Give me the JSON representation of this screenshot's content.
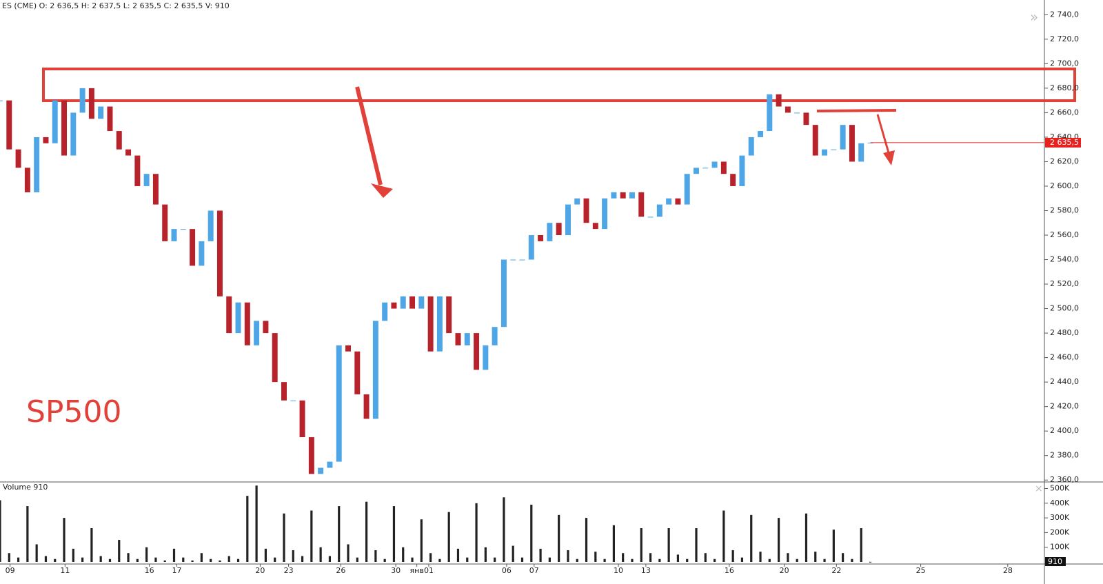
{
  "chart_data": [
    {
      "type": "candle",
      "title": "ES (CME) O: 2 636,5  H: 2 637,5  L: 2 635,5  C: 2 635,5  V: 910",
      "annotation": "SP500",
      "last_label": "2 635,5",
      "xlim": [
        0,
        114
      ],
      "xticks": [
        {
          "value": 1.1,
          "label": "09"
        },
        {
          "value": 7.1,
          "label": "11"
        },
        {
          "value": 16.3,
          "label": "16"
        },
        {
          "value": 19.3,
          "label": "17"
        },
        {
          "value": 28.4,
          "label": "20"
        },
        {
          "value": 31.5,
          "label": "23"
        },
        {
          "value": 37.2,
          "label": "26"
        },
        {
          "value": 43.2,
          "label": "30"
        },
        {
          "value": 45.5,
          "label": "янв"
        },
        {
          "value": 46.8,
          "label": "01"
        },
        {
          "value": 55.3,
          "label": "06"
        },
        {
          "value": 58.3,
          "label": "07"
        },
        {
          "value": 67.5,
          "label": "10"
        },
        {
          "value": 70.5,
          "label": "13"
        },
        {
          "value": 79.6,
          "label": "16"
        },
        {
          "value": 85.6,
          "label": "20"
        },
        {
          "value": 91.3,
          "label": "22"
        },
        {
          "value": 100.5,
          "label": "25"
        },
        {
          "value": 110,
          "label": "28"
        }
      ],
      "ylim": [
        2359,
        2752
      ],
      "yticks": [
        {
          "value": 2360,
          "label": "2 360,0"
        },
        {
          "value": 2380,
          "label": "2 380,0"
        },
        {
          "value": 2400,
          "label": "2 400,0"
        },
        {
          "value": 2420,
          "label": "2 420,0"
        },
        {
          "value": 2440,
          "label": "2 440,0"
        },
        {
          "value": 2460,
          "label": "2 460,0"
        },
        {
          "value": 2480,
          "label": "2 480,0"
        },
        {
          "value": 2500,
          "label": "2 500,0"
        },
        {
          "value": 2520,
          "label": "2 520,0"
        },
        {
          "value": 2540,
          "label": "2 540,0"
        },
        {
          "value": 2560,
          "label": "2 560,0"
        },
        {
          "value": 2580,
          "label": "2 580,0"
        },
        {
          "value": 2600,
          "label": "2 600,0"
        },
        {
          "value": 2620,
          "label": "2 620,0"
        },
        {
          "value": 2640,
          "label": "2 640,0"
        },
        {
          "value": 2660,
          "label": "2 660,0"
        },
        {
          "value": 2680,
          "label": "2 680,0"
        },
        {
          "value": 2700,
          "label": "2 700,0"
        },
        {
          "value": 2720,
          "label": "2 720,0"
        },
        {
          "value": 2740,
          "label": "2 740,0"
        }
      ],
      "up_color": "#4ea6e6",
      "down_color": "#b8222a",
      "last_color": "#e8231f",
      "series": [
        {
          "values": [
            2670,
            2630,
            2615,
            2595,
            2640,
            2635,
            2670,
            2625,
            2660,
            2680,
            2655,
            2665,
            2645,
            2630,
            2625,
            2600,
            2610,
            2585,
            2555,
            2565,
            2565,
            2535,
            2555,
            2580,
            2510,
            2480,
            2505,
            2470,
            2490,
            2480,
            2440,
            2425,
            2425,
            2395,
            2365,
            2370,
            2375,
            2470,
            2465,
            2430,
            2410,
            2490,
            2505,
            2500,
            2510,
            2500,
            2510,
            2465,
            2510,
            2480,
            2470,
            2480,
            2450,
            2470,
            2485,
            2540,
            2540,
            2540,
            2560,
            2555,
            2570,
            2560,
            2585,
            2590,
            2570,
            2565,
            2590,
            2595,
            2590,
            2595,
            2575,
            2575,
            2585,
            2590,
            2585,
            2610,
            2615,
            2615,
            2620,
            2610,
            2600,
            2625,
            2640,
            2645,
            2675,
            2665,
            2660,
            2660,
            2650,
            2625,
            2630,
            2630,
            2650,
            2620,
            2635,
            2635.5
          ]
        }
      ]
    },
    {
      "type": "bar",
      "title": "Volume 910",
      "xlim": [
        0,
        114
      ],
      "ylim": [
        0,
        540000
      ],
      "yticks": [
        {
          "value": 100000,
          "label": "100K"
        },
        {
          "value": 200000,
          "label": "200K"
        },
        {
          "value": 300000,
          "label": "300K"
        },
        {
          "value": 400000,
          "label": "400K"
        },
        {
          "value": 500000,
          "label": "500K"
        }
      ],
      "color": "#222222",
      "series": [
        {
          "values": [
            420000,
            60000,
            30000,
            380000,
            120000,
            40000,
            20000,
            300000,
            90000,
            30000,
            230000,
            40000,
            20000,
            150000,
            60000,
            20000,
            100000,
            30000,
            10000,
            90000,
            30000,
            10000,
            60000,
            20000,
            10000,
            40000,
            20000,
            450000,
            520000,
            90000,
            30000,
            330000,
            80000,
            40000,
            350000,
            100000,
            40000,
            380000,
            120000,
            30000,
            410000,
            80000,
            20000,
            380000,
            100000,
            30000,
            290000,
            60000,
            20000,
            340000,
            90000,
            30000,
            400000,
            100000,
            30000,
            440000,
            110000,
            30000,
            390000,
            90000,
            30000,
            320000,
            80000,
            20000,
            300000,
            70000,
            20000,
            250000,
            60000,
            20000,
            230000,
            60000,
            20000,
            230000,
            50000,
            20000,
            230000,
            60000,
            20000,
            350000,
            80000,
            30000,
            320000,
            70000,
            20000,
            300000,
            60000,
            20000,
            330000,
            70000,
            20000,
            220000,
            60000,
            20000,
            230000,
            910
          ]
        }
      ]
    }
  ]
}
